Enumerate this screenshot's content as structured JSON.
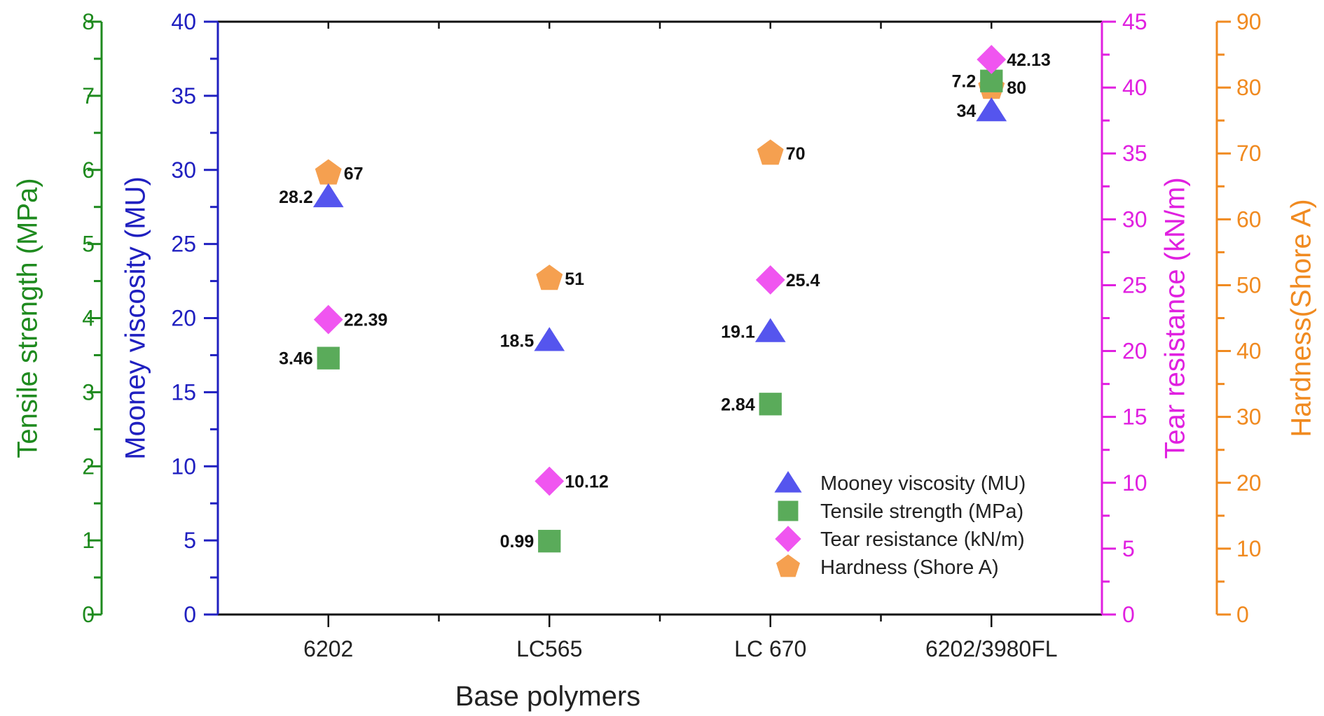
{
  "chart_data": {
    "type": "scatter",
    "title": "",
    "xlabel": "Base polymers",
    "categories": [
      "6202",
      "LC565",
      "LC 670",
      "6202/3980FL"
    ],
    "axes": [
      {
        "id": "tensile",
        "label": "Tensile strength (MPa)",
        "side": "left-outer",
        "color": "#1e8a1e",
        "range": [
          0,
          8
        ],
        "major_step": 1,
        "ticks": [
          "0",
          "1",
          "2",
          "3",
          "4",
          "5",
          "6",
          "7",
          "8"
        ]
      },
      {
        "id": "mooney",
        "label": "Mooney viscosity (MU)",
        "side": "left-inner",
        "color": "#2020c0",
        "range": [
          0,
          40
        ],
        "major_step": 5,
        "ticks": [
          "0",
          "5",
          "10",
          "15",
          "20",
          "25",
          "30",
          "35",
          "40"
        ]
      },
      {
        "id": "tear",
        "label": "Tear resistance (kN/m)",
        "side": "right-inner",
        "color": "#e020e0",
        "range": [
          0,
          45
        ],
        "major_step": 5,
        "ticks": [
          "0",
          "5",
          "10",
          "15",
          "20",
          "25",
          "30",
          "35",
          "40",
          "45"
        ]
      },
      {
        "id": "hardness",
        "label": "Hardness(Shore A)",
        "side": "right-outer",
        "color": "#f08a20",
        "range": [
          0,
          90
        ],
        "major_step": 10,
        "ticks": [
          "0",
          "10",
          "20",
          "30",
          "40",
          "50",
          "60",
          "70",
          "80",
          "90"
        ]
      }
    ],
    "series": [
      {
        "name": "Mooney viscosity (MU)",
        "axis": "mooney",
        "marker": "triangle",
        "color": "#5555ee",
        "values": [
          28.2,
          18.5,
          19.1,
          34
        ],
        "labels": [
          "28.2",
          "18.5",
          "19.1",
          "34"
        ],
        "label_side": "left"
      },
      {
        "name": "Tensile strength (MPa)",
        "axis": "tensile",
        "marker": "square",
        "color": "#5aab5a",
        "values": [
          3.46,
          0.99,
          2.84,
          7.2
        ],
        "labels": [
          "3.46",
          "0.99",
          "2.84",
          "7.2"
        ],
        "label_side": "left"
      },
      {
        "name": "Tear resistance (kN/m)",
        "axis": "tear",
        "marker": "diamond",
        "color": "#f055f0",
        "values": [
          22.39,
          10.12,
          25.4,
          42.13
        ],
        "labels": [
          "22.39",
          "10.12",
          "25.4",
          "42.13"
        ],
        "label_side": "right"
      },
      {
        "name": "Hardness (Shore A)",
        "axis": "hardness",
        "marker": "pentagon",
        "color": "#f5a050",
        "values": [
          67,
          51,
          70,
          80
        ],
        "labels": [
          "67",
          "51",
          "70",
          "80"
        ],
        "label_side": "right"
      }
    ],
    "legend": {
      "placement": "bottom-right",
      "entries": [
        "Mooney viscosity (MU)",
        "Tensile strength (MPa)",
        "Tear resistance (kN/m)",
        "Hardness (Shore A)"
      ]
    },
    "grid": false
  }
}
